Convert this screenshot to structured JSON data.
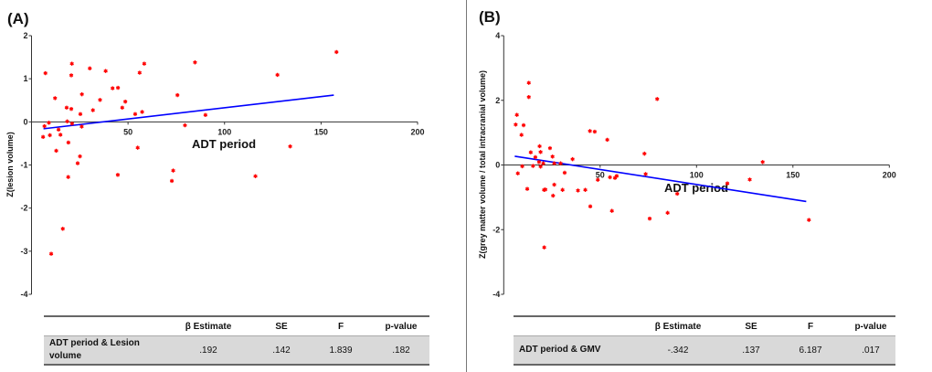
{
  "chart_data": [
    {
      "type": "scatter",
      "panel_label": "(A)",
      "xlabel": "ADT period",
      "ylabel": "Z(lesion volume)",
      "xlim": [
        0,
        200
      ],
      "ylim": [
        -4,
        2
      ],
      "xticks": [
        50,
        100,
        150,
        200
      ],
      "yticks": [
        2,
        1,
        0,
        -1,
        -2,
        -3,
        -4
      ],
      "marker": "asterisk",
      "point_color": "#ff0000",
      "line_color": "#0000ff",
      "grid": false,
      "points": [
        [
          7.2,
          1.13
        ],
        [
          20.9,
          1.35
        ],
        [
          20.6,
          1.08
        ],
        [
          30.2,
          1.24
        ],
        [
          38.4,
          1.18
        ],
        [
          12.2,
          0.55
        ],
        [
          26.1,
          0.64
        ],
        [
          18.2,
          0.33
        ],
        [
          20.6,
          0.3
        ],
        [
          35.5,
          0.51
        ],
        [
          31.8,
          0.27
        ],
        [
          25.3,
          0.18
        ],
        [
          42,
          0.78
        ],
        [
          44.8,
          0.79
        ],
        [
          48.6,
          0.47
        ],
        [
          47,
          0.33
        ],
        [
          53.7,
          0.18
        ],
        [
          57.3,
          0.23
        ],
        [
          56,
          1.14
        ],
        [
          58.4,
          1.35
        ],
        [
          75.6,
          0.62
        ],
        [
          84.7,
          1.38
        ],
        [
          90.1,
          0.16
        ],
        [
          79.5,
          -0.08
        ],
        [
          127.4,
          1.09
        ],
        [
          158,
          1.62
        ],
        [
          134,
          -0.57
        ],
        [
          116,
          -1.26
        ],
        [
          73.4,
          -1.13
        ],
        [
          72.7,
          -1.37
        ],
        [
          55,
          -0.6
        ],
        [
          44.7,
          -1.23
        ],
        [
          6,
          -0.35
        ],
        [
          6.7,
          -0.1
        ],
        [
          9,
          -0.02
        ],
        [
          9.5,
          -0.31
        ],
        [
          14,
          -0.18
        ],
        [
          15,
          -0.3
        ],
        [
          12.8,
          -0.67
        ],
        [
          18.5,
          0.01
        ],
        [
          19.1,
          -0.48
        ],
        [
          21,
          -0.04
        ],
        [
          26,
          -0.11
        ],
        [
          25.1,
          -0.8
        ],
        [
          23.9,
          -0.96
        ],
        [
          19,
          -1.28
        ],
        [
          16.2,
          -2.48
        ],
        [
          10.2,
          -3.06
        ]
      ],
      "fit_line": [
        [
          6.2,
          -0.16
        ],
        [
          156.6,
          0.62
        ]
      ],
      "table": {
        "headers": [
          "",
          "β Estimate",
          "SE",
          "F",
          "p-value"
        ],
        "row": [
          "ADT period  &  Lesion volume",
          ".192",
          ".142",
          "1.839",
          ".182"
        ]
      }
    },
    {
      "type": "scatter",
      "panel_label": "(B)",
      "xlabel": "ADT period",
      "ylabel": "Z(grey matter volume / total intracranial volume)",
      "xlim": [
        0,
        200
      ],
      "ylim": [
        -4,
        4
      ],
      "xticks": [
        50,
        100,
        150,
        200
      ],
      "yticks": [
        4,
        2,
        0,
        -2,
        -4
      ],
      "marker": "asterisk",
      "point_color": "#ff0000",
      "line_color": "#0000ff",
      "grid": false,
      "points": [
        [
          13,
          2.54
        ],
        [
          13,
          2.1
        ],
        [
          79.6,
          2.04
        ],
        [
          6.8,
          1.55
        ],
        [
          6.2,
          1.25
        ],
        [
          10.3,
          1.23
        ],
        [
          9.2,
          0.93
        ],
        [
          44.7,
          1.05
        ],
        [
          47.2,
          1.03
        ],
        [
          53.7,
          0.78
        ],
        [
          73,
          0.35
        ],
        [
          134.3,
          0.09
        ],
        [
          14,
          0.39
        ],
        [
          18.6,
          0.58
        ],
        [
          19.1,
          0.4
        ],
        [
          24,
          0.52
        ],
        [
          16.4,
          0.24
        ],
        [
          25.3,
          0.26
        ],
        [
          18.3,
          0.09
        ],
        [
          20.5,
          0.05
        ],
        [
          26.2,
          0.05
        ],
        [
          29.5,
          0.05
        ],
        [
          35.7,
          0.18
        ],
        [
          19.1,
          -0.05
        ],
        [
          15.2,
          -0.03
        ],
        [
          9.6,
          -0.04
        ],
        [
          7.3,
          -0.26
        ],
        [
          31.6,
          -0.24
        ],
        [
          12.2,
          -0.74
        ],
        [
          20.9,
          -0.77
        ],
        [
          21.6,
          -0.76
        ],
        [
          26.2,
          -0.61
        ],
        [
          25.6,
          -0.95
        ],
        [
          30.5,
          -0.77
        ],
        [
          38.5,
          -0.79
        ],
        [
          42.3,
          -0.77
        ],
        [
          48.8,
          -0.46
        ],
        [
          55.1,
          -0.38
        ],
        [
          57.7,
          -0.4
        ],
        [
          58.6,
          -0.34
        ],
        [
          44.9,
          -1.28
        ],
        [
          56.1,
          -1.42
        ],
        [
          73.6,
          -0.28
        ],
        [
          75.7,
          -1.66
        ],
        [
          85,
          -1.48
        ],
        [
          90,
          -0.89
        ],
        [
          116,
          -0.57
        ],
        [
          127.6,
          -0.45
        ],
        [
          158.3,
          -1.7
        ],
        [
          21,
          -2.55
        ]
      ],
      "fit_line": [
        [
          5.7,
          0.27
        ],
        [
          156.9,
          -1.13
        ]
      ],
      "table": {
        "headers": [
          "",
          "β Estimate",
          "SE",
          "F",
          "p-value"
        ],
        "row": [
          "ADT period & GMV",
          "-.342",
          ".137",
          "6.187",
          ".017"
        ]
      }
    }
  ]
}
